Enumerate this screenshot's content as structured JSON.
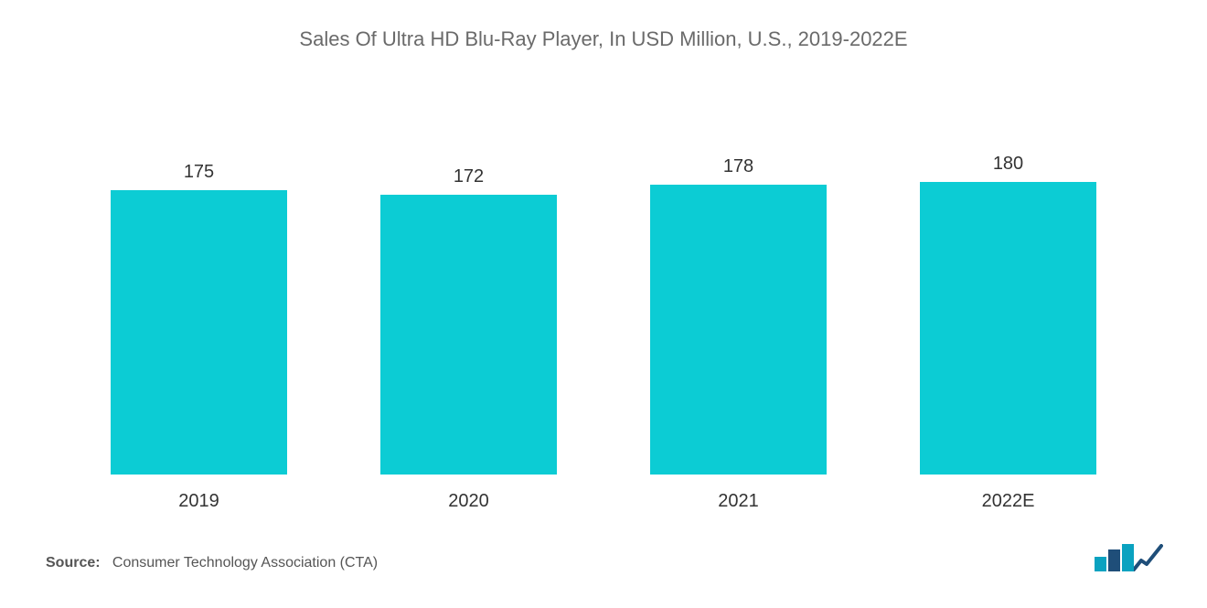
{
  "chart": {
    "type": "bar",
    "title": "Sales Of  Ultra HD Blu-Ray Player, In USD Million, U.S.,  2019-2022E",
    "title_fontsize": 22,
    "title_color": "#6a6a6a",
    "categories": [
      "2019",
      "2020",
      "2021",
      "2022E"
    ],
    "values": [
      175,
      172,
      178,
      180
    ],
    "bar_colors": [
      "#0cccd4",
      "#0cccd4",
      "#0cccd4",
      "#0cccd4"
    ],
    "value_label_fontsize": 20,
    "value_label_color": "#333333",
    "category_label_fontsize": 20,
    "category_label_color": "#333333",
    "background_color": "#ffffff",
    "bar_width_pct": 74,
    "ylim": [
      0,
      180
    ],
    "bar_pixel_scale": 1.78
  },
  "source": {
    "label": "Source:",
    "text": "Consumer Technology Association (CTA)"
  },
  "logo": {
    "bar_colors": [
      "#0aa2c0",
      "#1f4e79",
      "#0aa2c0"
    ],
    "line_color": "#1f4e79"
  }
}
